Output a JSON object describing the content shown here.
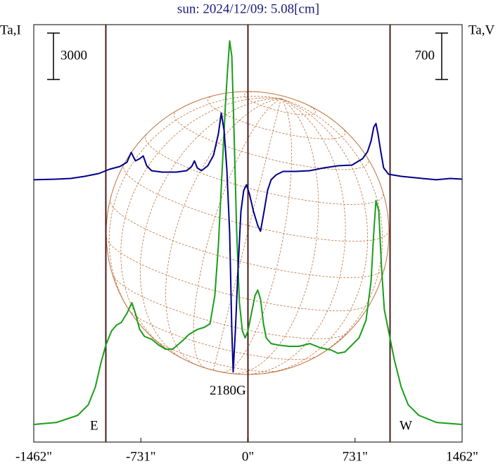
{
  "chart_data": {
    "type": "line",
    "title": "sun: 2024/12/09: 5.08[cm]",
    "y_label": "Ta,I",
    "y2_label": "Ta,V",
    "xlim": [
      -1462,
      1462
    ],
    "xticks": [
      {
        "value": -1462,
        "label": "-1462\""
      },
      {
        "value": -731,
        "label": "-731\""
      },
      {
        "value": 0,
        "label": "0\""
      },
      {
        "value": 731,
        "label": "731\""
      },
      {
        "value": 1462,
        "label": "1462\""
      }
    ],
    "ylim": [
      -1000,
      26000
    ],
    "y2lim": [
      -4000,
      2300
    ],
    "scale_bars": [
      {
        "value": 3000,
        "axis": "y"
      },
      {
        "value": 700,
        "axis": "y2"
      }
    ],
    "vlines": [
      -970,
      0,
      970
    ],
    "annotations": [
      "E",
      "W",
      "2180G"
    ],
    "series": [
      {
        "color": "#1a9e1a",
        "x": [
          -1462,
          -1306,
          -1162,
          -1090,
          -1042,
          -1003,
          -970,
          -931,
          -898,
          -864,
          -826,
          -792,
          -768,
          -739,
          -706,
          -658,
          -610,
          -562,
          -514,
          -451,
          -403,
          -346,
          -298,
          -259,
          -226,
          -202,
          -178,
          -154,
          -139,
          -125,
          -110,
          -96,
          -77,
          -58,
          -38,
          -19,
          0,
          29,
          48,
          67,
          86,
          106,
          125,
          158,
          206,
          278,
          350,
          422,
          494,
          566,
          614,
          662,
          710,
          758,
          806,
          840,
          859,
          874,
          893,
          912,
          931,
          960,
          998,
          1046,
          1094,
          1166,
          1286,
          1462
        ],
        "values": [
          140,
          270,
          730,
          1410,
          2550,
          4140,
          5280,
          6190,
          6560,
          6740,
          7330,
          8010,
          7330,
          6280,
          5830,
          5650,
          5280,
          5010,
          5010,
          5510,
          5960,
          6280,
          6420,
          6650,
          8470,
          11660,
          16210,
          20760,
          23040,
          24950,
          23950,
          19400,
          12570,
          8010,
          6190,
          5740,
          6190,
          7560,
          8470,
          8830,
          8240,
          6650,
          5740,
          5370,
          5280,
          5190,
          5190,
          5370,
          5100,
          4960,
          4740,
          4830,
          5280,
          5740,
          6880,
          9380,
          12570,
          14620,
          13930,
          10290,
          7560,
          6190,
          4370,
          2550,
          1410,
          730,
          270,
          140
        ]
      },
      {
        "color": "#00008b",
        "axis": "y2",
        "x": [
          -1462,
          -1306,
          -1210,
          -1114,
          -1018,
          -946,
          -874,
          -826,
          -797,
          -768,
          -739,
          -715,
          -691,
          -658,
          -586,
          -490,
          -418,
          -384,
          -365,
          -346,
          -317,
          -274,
          -235,
          -202,
          -182,
          -163,
          -144,
          -125,
          -110,
          -101,
          -86,
          -67,
          -48,
          -29,
          -10,
          10,
          38,
          67,
          86,
          110,
          134,
          158,
          192,
          240,
          326,
          422,
          518,
          614,
          710,
          782,
          816,
          840,
          859,
          874,
          888,
          907,
          926,
          960,
          1046,
          1190,
          1286,
          1382,
          1462
        ],
        "values": [
          -42,
          -32,
          -21,
          11,
          53,
          117,
          159,
          223,
          372,
          244,
          276,
          319,
          170,
          96,
          74,
          74,
          96,
          159,
          244,
          138,
          96,
          170,
          329,
          648,
          966,
          701,
          117,
          -839,
          -2326,
          -2942,
          -2326,
          -1370,
          -520,
          -202,
          -117,
          -255,
          -520,
          -733,
          -818,
          -520,
          -202,
          -42,
          32,
          85,
          85,
          96,
          138,
          170,
          180,
          276,
          382,
          542,
          754,
          807,
          648,
          382,
          138,
          42,
          11,
          -21,
          -42,
          -21,
          -32
        ]
      }
    ]
  }
}
